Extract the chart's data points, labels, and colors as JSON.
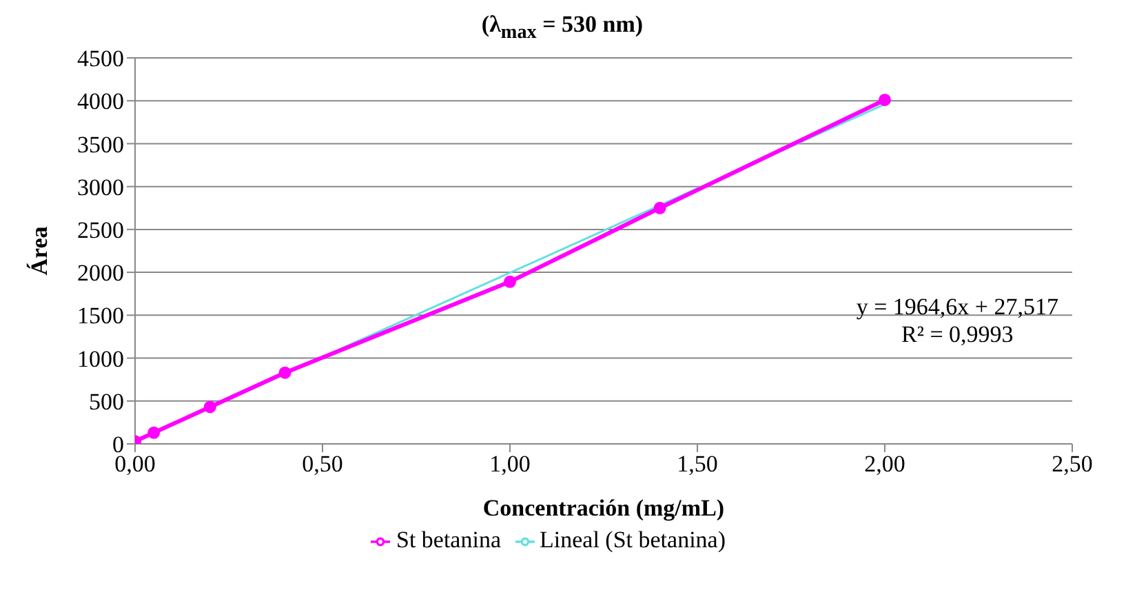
{
  "chart_data": {
    "type": "line",
    "title": "(λ$_{max}$ = 530 nm)",
    "xlabel": "Concentración (mg/mL)",
    "ylabel": "Área",
    "xlim": [
      0,
      2.5
    ],
    "xticks": [
      {
        "value": 0,
        "label": "0,00"
      },
      {
        "value": 0.5,
        "label": "0,50"
      },
      {
        "value": 1,
        "label": "1,00"
      },
      {
        "value": 1.5,
        "label": "1,50"
      },
      {
        "value": 2,
        "label": "2,00"
      },
      {
        "value": 2.5,
        "label": "2,50"
      }
    ],
    "ylim": [
      0,
      4500
    ],
    "yticks": [
      0,
      500,
      1000,
      1500,
      2000,
      2500,
      3000,
      3500,
      4000,
      4500
    ],
    "grid": "y",
    "legend": "bottom",
    "series": [
      {
        "name": "St betanina",
        "color": "#ff00ff",
        "marker": "circle",
        "x": [
          0,
          0.05,
          0.2,
          0.4,
          1.0,
          1.4,
          2.0
        ],
        "values": [
          30,
          130,
          430,
          830,
          1890,
          2750,
          4010
        ]
      },
      {
        "name": "Lineal (St betanina)",
        "color": "#66e0e0",
        "marker": "none",
        "x": [
          0,
          2.0
        ],
        "values": [
          30,
          3960
        ]
      }
    ],
    "annotations": [
      "y = 1964,6x + 27,517",
      "R² = 0,9993"
    ]
  }
}
